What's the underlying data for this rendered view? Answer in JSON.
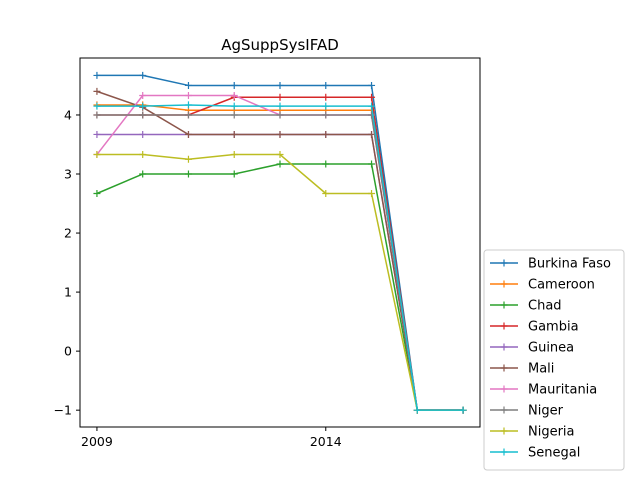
{
  "chart_data": {
    "type": "line",
    "title": "AgSuppSysIFAD",
    "xlabel": "",
    "ylabel": "",
    "x": [
      2009,
      2010,
      2011,
      2012,
      2013,
      2014,
      2015,
      2016,
      2017
    ],
    "x_ticks": [
      2009,
      2014
    ],
    "y_ticks": [
      -1,
      0,
      1,
      2,
      3,
      4
    ],
    "xlim": [
      2008.63,
      2017.37
    ],
    "ylim": [
      -1.285,
      4.965
    ],
    "grid": false,
    "legend_position": "lower-right-outside",
    "series": [
      {
        "name": "Burkina Faso",
        "color": "#1f77b4",
        "values": [
          4.67,
          4.67,
          4.5,
          4.5,
          4.5,
          4.5,
          4.5,
          -1,
          -1
        ]
      },
      {
        "name": "Cameroon",
        "color": "#ff7f0e",
        "values": [
          4.17,
          4.17,
          4.08,
          4.08,
          4.08,
          4.08,
          4.08,
          -1,
          -1
        ]
      },
      {
        "name": "Chad",
        "color": "#2ca02c",
        "values": [
          2.67,
          3.0,
          3.0,
          3.0,
          3.17,
          3.17,
          3.17,
          -1,
          -1
        ]
      },
      {
        "name": "Gambia",
        "color": "#d62728",
        "values": [
          4.0,
          4.0,
          4.0,
          4.3,
          4.3,
          4.3,
          4.3,
          -1,
          -1
        ]
      },
      {
        "name": "Guinea",
        "color": "#9467bd",
        "values": [
          3.67,
          3.67,
          3.67,
          3.67,
          3.67,
          3.67,
          3.67,
          -1,
          -1
        ]
      },
      {
        "name": "Mali",
        "color": "#8c564b",
        "values": [
          4.4,
          4.13,
          3.67,
          3.67,
          3.67,
          3.67,
          3.67,
          -1,
          -1
        ]
      },
      {
        "name": "Mauritania",
        "color": "#e377c2",
        "values": [
          3.33,
          4.33,
          4.33,
          4.33,
          4.0,
          4.0,
          4.0,
          -1,
          -1
        ]
      },
      {
        "name": "Niger",
        "color": "#7f7f7f",
        "values": [
          4.0,
          4.0,
          4.0,
          4.0,
          4.0,
          4.0,
          4.0,
          -1,
          -1
        ]
      },
      {
        "name": "Nigeria",
        "color": "#bcbd22",
        "values": [
          3.33,
          3.33,
          3.25,
          3.33,
          3.33,
          2.67,
          2.67,
          -1,
          -1
        ]
      },
      {
        "name": "Senegal",
        "color": "#17becf",
        "values": [
          4.15,
          4.15,
          4.17,
          4.15,
          4.15,
          4.15,
          4.15,
          -1,
          -1
        ]
      }
    ]
  }
}
